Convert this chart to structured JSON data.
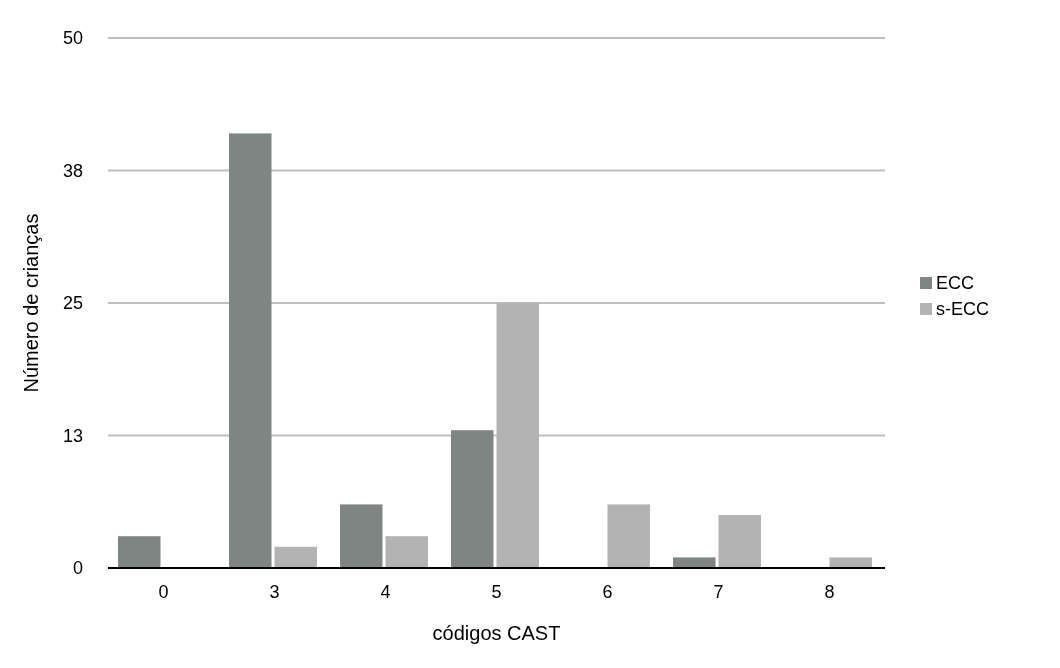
{
  "chart_data": {
    "type": "bar",
    "xlabel": "códigos CAST",
    "ylabel": "Número de crianças",
    "categories": [
      "0",
      "3",
      "4",
      "5",
      "6",
      "7",
      "8"
    ],
    "series": [
      {
        "name": "ECC",
        "color": "#7f8582",
        "values": [
          3,
          41,
          6,
          13,
          0,
          1,
          0
        ]
      },
      {
        "name": "s-ECC",
        "color": "#b3b3b3",
        "values": [
          0,
          2,
          3,
          25,
          6,
          5,
          1
        ]
      }
    ],
    "ylim": [
      0,
      50
    ],
    "yticks": [
      0,
      {
        "value": 12.5,
        "label": "13"
      },
      25,
      {
        "value": 37.5,
        "label": "38"
      },
      50
    ],
    "grid": "y",
    "legend": "right"
  }
}
